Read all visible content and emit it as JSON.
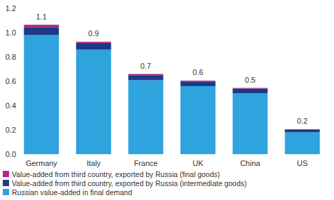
{
  "chart_data": {
    "type": "bar",
    "stacked": true,
    "categories": [
      "Germany",
      "Italy",
      "France",
      "UK",
      "China",
      "US"
    ],
    "series": [
      {
        "name": "Russian value-added in final demand",
        "color": "#2ea3dd",
        "values": [
          0.98,
          0.86,
          0.61,
          0.56,
          0.5,
          0.18
        ]
      },
      {
        "name": "Value-added from third country, exported by Russia (intermediate goods)",
        "color": "#1b3a86",
        "values": [
          0.06,
          0.055,
          0.04,
          0.035,
          0.04,
          0.02
        ]
      },
      {
        "name": "Value-added from third country, exported by Russia (final goods)",
        "color": "#b02c7e",
        "values": [
          0.025,
          0.01,
          0.01,
          0.01,
          0.005,
          0.005
        ]
      }
    ],
    "total_labels": [
      1.1,
      0.9,
      0.7,
      0.6,
      0.5,
      0.2
    ],
    "ylim": [
      0,
      1.2
    ],
    "yticks": [
      {
        "value": 0,
        "label": "0.0"
      },
      0.2,
      0.4,
      0.6,
      0.8,
      {
        "value": 1,
        "label": "1.0"
      },
      1.2
    ],
    "grid": false,
    "legend": "bottom"
  }
}
